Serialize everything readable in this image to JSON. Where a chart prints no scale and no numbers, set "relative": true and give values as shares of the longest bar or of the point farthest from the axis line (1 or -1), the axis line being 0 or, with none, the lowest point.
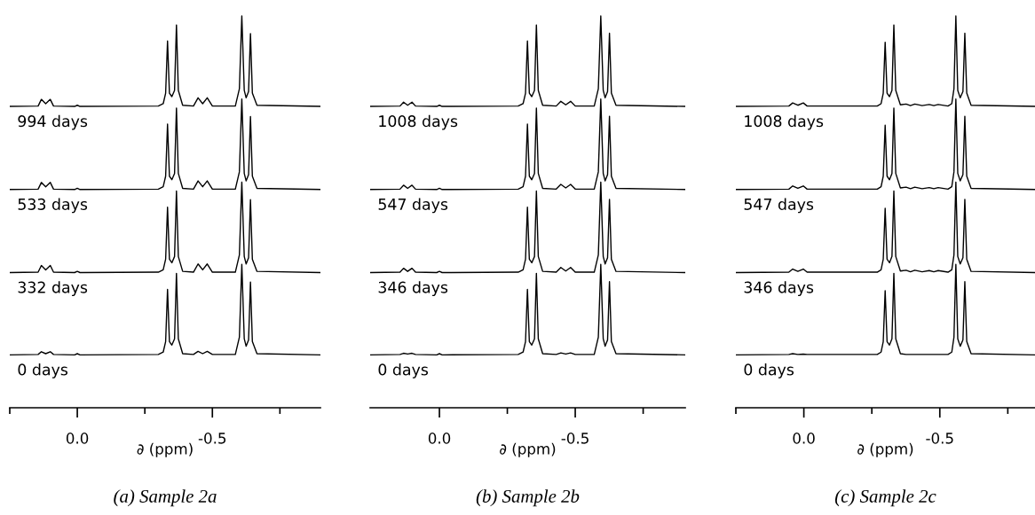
{
  "chart_data": [
    {
      "type": "line",
      "title": "(a) Sample 2a",
      "xlabel": "∂ (ppm)",
      "relative": true,
      "tick_labels": "x",
      "legend": false,
      "grid": false,
      "xlim": [
        0.25,
        -0.9
      ],
      "xticks": [
        {
          "value": 0.25,
          "label": null
        },
        {
          "value": 0,
          "label": "0.0"
        },
        {
          "value": -0.25,
          "label": null
        },
        {
          "value": -0.5,
          "label": "-0.5"
        },
        {
          "value": -0.75,
          "label": null
        }
      ],
      "x": [
        0.25,
        0.145,
        0.133,
        0.117,
        0.1,
        0.088,
        0.01,
        0.0,
        -0.01,
        -0.3,
        -0.318,
        -0.327,
        -0.334,
        -0.341,
        -0.35,
        -0.36,
        -0.367,
        -0.374,
        -0.39,
        -0.43,
        -0.447,
        -0.464,
        -0.481,
        -0.5,
        -0.585,
        -0.6,
        -0.609,
        -0.618,
        -0.625,
        -0.634,
        -0.641,
        -0.648,
        -0.665,
        -0.9
      ],
      "series": [
        {
          "name": "994 days",
          "color": "#000000",
          "values": [
            0.769,
            0.77,
            0.787,
            0.776,
            0.787,
            0.77,
            0.769,
            0.772,
            0.769,
            0.77,
            0.776,
            0.803,
            0.936,
            0.803,
            0.794,
            0.81,
            0.977,
            0.81,
            0.772,
            0.77,
            0.791,
            0.776,
            0.791,
            0.77,
            0.77,
            0.814,
            1.0,
            0.81,
            0.791,
            0.807,
            0.955,
            0.803,
            0.772,
            0.769
          ]
        },
        {
          "name": "533 days",
          "color": "#000000",
          "values": [
            0.557,
            0.558,
            0.575,
            0.564,
            0.575,
            0.558,
            0.557,
            0.56,
            0.557,
            0.558,
            0.564,
            0.591,
            0.724,
            0.591,
            0.582,
            0.598,
            0.765,
            0.598,
            0.56,
            0.558,
            0.579,
            0.564,
            0.579,
            0.558,
            0.558,
            0.602,
            0.788,
            0.598,
            0.579,
            0.595,
            0.743,
            0.591,
            0.56,
            0.557
          ]
        },
        {
          "name": "332 days",
          "color": "#000000",
          "values": [
            0.345,
            0.346,
            0.363,
            0.352,
            0.363,
            0.346,
            0.345,
            0.348,
            0.345,
            0.346,
            0.352,
            0.379,
            0.512,
            0.379,
            0.37,
            0.386,
            0.553,
            0.386,
            0.348,
            0.346,
            0.367,
            0.352,
            0.367,
            0.346,
            0.346,
            0.39,
            0.576,
            0.386,
            0.367,
            0.383,
            0.531,
            0.379,
            0.348,
            0.345
          ]
        },
        {
          "name": "0 days",
          "color": "#000000",
          "values": [
            0.135,
            0.136,
            0.143,
            0.138,
            0.143,
            0.136,
            0.135,
            0.138,
            0.135,
            0.136,
            0.142,
            0.169,
            0.302,
            0.169,
            0.16,
            0.176,
            0.343,
            0.176,
            0.138,
            0.136,
            0.144,
            0.138,
            0.144,
            0.136,
            0.136,
            0.18,
            0.366,
            0.176,
            0.157,
            0.173,
            0.321,
            0.169,
            0.138,
            0.135
          ]
        }
      ]
    },
    {
      "type": "line",
      "title": "(b) Sample 2b",
      "xlabel": "∂ (ppm)",
      "relative": true,
      "tick_labels": "x",
      "legend": false,
      "grid": false,
      "xlim": [
        0.255,
        -0.905
      ],
      "xticks": [
        {
          "value": 0,
          "label": "0.0"
        },
        {
          "value": -0.25,
          "label": null
        },
        {
          "value": -0.5,
          "label": "-0.5"
        },
        {
          "value": -0.75,
          "label": null
        }
      ],
      "x": [
        0.255,
        0.145,
        0.132,
        0.117,
        0.101,
        0.088,
        0.01,
        0.0,
        -0.01,
        -0.29,
        -0.308,
        -0.317,
        -0.324,
        -0.331,
        -0.34,
        -0.35,
        -0.357,
        -0.364,
        -0.38,
        -0.43,
        -0.447,
        -0.465,
        -0.483,
        -0.5,
        -0.57,
        -0.585,
        -0.594,
        -0.603,
        -0.61,
        -0.619,
        -0.626,
        -0.633,
        -0.65,
        -0.905
      ],
      "series": [
        {
          "name": "1008 days",
          "color": "#000000",
          "values": [
            0.769,
            0.77,
            0.78,
            0.772,
            0.78,
            0.77,
            0.769,
            0.772,
            0.769,
            0.77,
            0.776,
            0.803,
            0.936,
            0.803,
            0.794,
            0.81,
            0.977,
            0.81,
            0.772,
            0.77,
            0.782,
            0.773,
            0.782,
            0.77,
            0.77,
            0.814,
            1.0,
            0.81,
            0.791,
            0.807,
            0.956,
            0.803,
            0.772,
            0.769
          ]
        },
        {
          "name": "547 days",
          "color": "#000000",
          "values": [
            0.557,
            0.558,
            0.568,
            0.56,
            0.568,
            0.558,
            0.557,
            0.56,
            0.557,
            0.558,
            0.564,
            0.591,
            0.724,
            0.591,
            0.582,
            0.598,
            0.765,
            0.598,
            0.56,
            0.558,
            0.57,
            0.561,
            0.57,
            0.558,
            0.558,
            0.602,
            0.788,
            0.598,
            0.579,
            0.595,
            0.744,
            0.591,
            0.56,
            0.557
          ]
        },
        {
          "name": "346 days",
          "color": "#000000",
          "values": [
            0.345,
            0.346,
            0.356,
            0.348,
            0.356,
            0.346,
            0.345,
            0.348,
            0.345,
            0.346,
            0.352,
            0.379,
            0.512,
            0.379,
            0.37,
            0.386,
            0.553,
            0.386,
            0.348,
            0.346,
            0.358,
            0.349,
            0.358,
            0.346,
            0.346,
            0.39,
            0.576,
            0.386,
            0.367,
            0.383,
            0.532,
            0.379,
            0.348,
            0.345
          ]
        },
        {
          "name": "0 days",
          "color": "#000000",
          "values": [
            0.135,
            0.136,
            0.139,
            0.137,
            0.139,
            0.136,
            0.135,
            0.138,
            0.135,
            0.136,
            0.142,
            0.169,
            0.302,
            0.169,
            0.16,
            0.176,
            0.343,
            0.176,
            0.138,
            0.136,
            0.14,
            0.137,
            0.14,
            0.136,
            0.136,
            0.18,
            0.366,
            0.176,
            0.157,
            0.173,
            0.322,
            0.169,
            0.138,
            0.135
          ]
        }
      ]
    },
    {
      "type": "line",
      "title": "(c) Sample 2c",
      "xlabel": "∂ (ppm)",
      "relative": true,
      "tick_labels": "x",
      "legend": false,
      "grid": false,
      "xlim": [
        0.25,
        -0.85
      ],
      "xticks": [
        {
          "value": 0.25,
          "label": null
        },
        {
          "value": 0,
          "label": "0.0"
        },
        {
          "value": -0.25,
          "label": null
        },
        {
          "value": -0.5,
          "label": "-0.5"
        },
        {
          "value": -0.75,
          "label": null
        }
      ],
      "x": [
        0.25,
        0.055,
        0.041,
        0.022,
        0.002,
        -0.012,
        -0.27,
        -0.284,
        -0.292,
        -0.299,
        -0.306,
        -0.315,
        -0.324,
        -0.331,
        -0.338,
        -0.355,
        -0.376,
        -0.392,
        -0.408,
        -0.435,
        -0.461,
        -0.478,
        -0.494,
        -0.53,
        -0.544,
        -0.552,
        -0.559,
        -0.566,
        -0.575,
        -0.585,
        -0.592,
        -0.599,
        -0.615,
        -0.85
      ],
      "series": [
        {
          "name": "1008 days",
          "color": "#000000",
          "values": [
            0.769,
            0.77,
            0.778,
            0.772,
            0.778,
            0.77,
            0.77,
            0.776,
            0.803,
            0.933,
            0.803,
            0.794,
            0.81,
            0.977,
            0.81,
            0.773,
            0.775,
            0.771,
            0.775,
            0.771,
            0.774,
            0.771,
            0.774,
            0.77,
            0.776,
            0.814,
            1.0,
            0.81,
            0.791,
            0.807,
            0.956,
            0.803,
            0.772,
            0.769
          ]
        },
        {
          "name": "547 days",
          "color": "#000000",
          "values": [
            0.557,
            0.558,
            0.566,
            0.56,
            0.566,
            0.558,
            0.558,
            0.564,
            0.591,
            0.721,
            0.591,
            0.582,
            0.598,
            0.765,
            0.598,
            0.561,
            0.563,
            0.559,
            0.563,
            0.559,
            0.562,
            0.559,
            0.562,
            0.558,
            0.564,
            0.602,
            0.788,
            0.598,
            0.579,
            0.595,
            0.744,
            0.591,
            0.56,
            0.557
          ]
        },
        {
          "name": "346 days",
          "color": "#000000",
          "values": [
            0.345,
            0.346,
            0.354,
            0.348,
            0.354,
            0.346,
            0.346,
            0.352,
            0.379,
            0.509,
            0.379,
            0.37,
            0.386,
            0.553,
            0.386,
            0.349,
            0.351,
            0.347,
            0.351,
            0.347,
            0.35,
            0.347,
            0.35,
            0.346,
            0.352,
            0.39,
            0.576,
            0.386,
            0.367,
            0.383,
            0.532,
            0.379,
            0.348,
            0.345
          ]
        },
        {
          "name": "0 days",
          "color": "#000000",
          "values": [
            0.135,
            0.136,
            0.138,
            0.136,
            0.137,
            0.136,
            0.136,
            0.142,
            0.169,
            0.299,
            0.169,
            0.16,
            0.176,
            0.343,
            0.176,
            0.138,
            0.136,
            0.136,
            0.136,
            0.136,
            0.136,
            0.136,
            0.136,
            0.136,
            0.142,
            0.18,
            0.366,
            0.176,
            0.157,
            0.173,
            0.322,
            0.169,
            0.138,
            0.135
          ]
        }
      ]
    }
  ]
}
